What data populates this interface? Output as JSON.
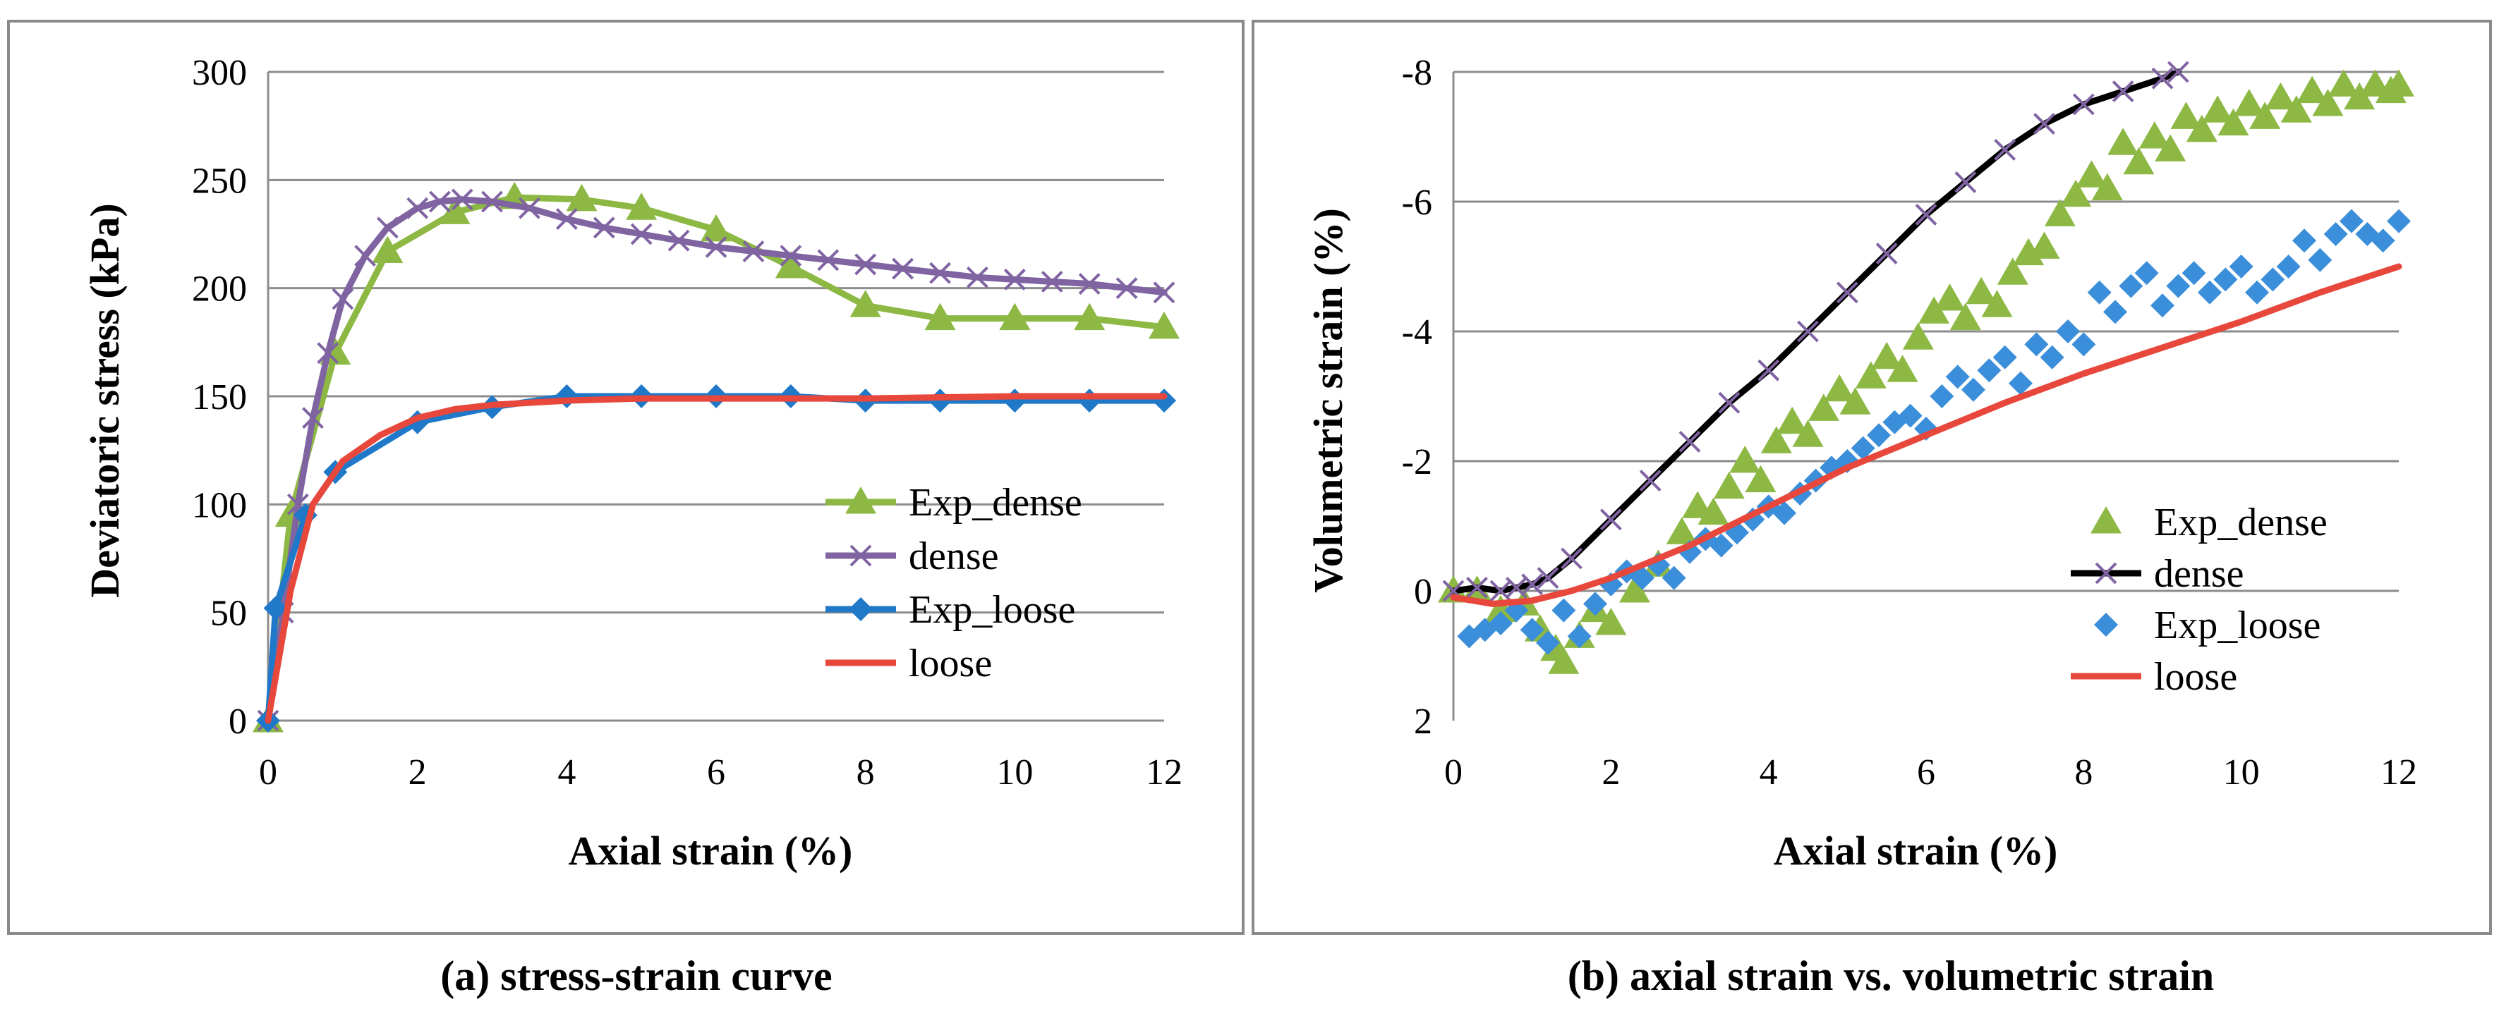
{
  "chart_data": [
    {
      "type": "line",
      "caption": "(a) stress-strain curve",
      "xlabel": "Axial strain (%)",
      "ylabel": "Deviatoric stress (kPa)",
      "xlim": [
        0,
        12
      ],
      "ylim": [
        0,
        300
      ],
      "xticks": [
        0,
        2,
        4,
        6,
        8,
        10,
        12
      ],
      "yticks": [
        0,
        50,
        100,
        150,
        200,
        250,
        300
      ],
      "xtick_labels": [
        "0",
        "2",
        "4",
        "6",
        "8",
        "10",
        "12"
      ],
      "ytick_labels": [
        "0",
        "50",
        "100",
        "150",
        "200",
        "250",
        "300"
      ],
      "grid": "horizontal",
      "legend_position": "right",
      "series": [
        {
          "name": "Exp_dense",
          "color": "#8DB844",
          "marker": "triangle",
          "line": true,
          "x": [
            0,
            0.3,
            0.9,
            1.6,
            2.5,
            3.3,
            4.2,
            5.0,
            6.0,
            7.0,
            8.0,
            9.0,
            10.0,
            11.0,
            12.0
          ],
          "y": [
            0,
            95,
            170,
            217,
            235,
            242,
            241,
            237,
            227,
            210,
            192,
            186,
            186,
            186,
            182
          ]
        },
        {
          "name": "dense",
          "color": "#8064A2",
          "marker": "cross",
          "line": true,
          "x": [
            0,
            0.2,
            0.4,
            0.6,
            0.8,
            1.0,
            1.3,
            1.6,
            2.0,
            2.3,
            2.6,
            3.0,
            3.5,
            4.0,
            4.5,
            5.0,
            5.5,
            6.0,
            6.5,
            7.0,
            7.5,
            8.0,
            8.5,
            9.0,
            9.5,
            10.0,
            10.5,
            11.0,
            11.5,
            12.0
          ],
          "y": [
            0,
            50,
            100,
            140,
            170,
            195,
            215,
            228,
            237,
            240,
            241,
            240,
            237,
            232,
            228,
            225,
            222,
            219,
            217,
            215,
            213,
            211,
            209,
            207,
            205,
            204,
            203,
            202,
            200,
            198
          ]
        },
        {
          "name": "Exp_loose",
          "color": "#1F78C8",
          "marker": "diamond",
          "line": true,
          "x": [
            0,
            0.1,
            0.5,
            0.9,
            2.0,
            3.0,
            4.0,
            5.0,
            6.0,
            7.0,
            8.0,
            9.0,
            10.0,
            11.0,
            12.0
          ],
          "y": [
            0,
            52,
            95,
            115,
            138,
            145,
            150,
            150,
            150,
            150,
            148,
            148,
            148,
            148,
            148
          ]
        },
        {
          "name": "loose",
          "color": "#E8473C",
          "marker": "none",
          "line": true,
          "x": [
            0,
            0.3,
            0.6,
            1.0,
            1.5,
            2.0,
            2.5,
            3.0,
            4.0,
            5.0,
            6.0,
            8.0,
            10.0,
            12.0
          ],
          "y": [
            0,
            60,
            100,
            120,
            132,
            140,
            144,
            146,
            148,
            149,
            149,
            149,
            150,
            150
          ]
        }
      ]
    },
    {
      "type": "scatter",
      "caption": "(b) axial strain vs. volumetric strain",
      "xlabel": "Axial strain (%)",
      "ylabel": "Volumetric strain (%)",
      "xlim": [
        0,
        12
      ],
      "ylim": [
        2,
        -8
      ],
      "xticks": [
        0,
        2,
        4,
        6,
        8,
        10,
        12
      ],
      "yticks": [
        2,
        0,
        -2,
        -4,
        -6,
        -8
      ],
      "xtick_labels": [
        "0",
        "2",
        "4",
        "6",
        "8",
        "10",
        "12"
      ],
      "ytick_labels": [
        "2",
        "0",
        "-2",
        "-4",
        "-6",
        "-8"
      ],
      "grid": "horizontal",
      "legend_position": "bottom-right",
      "series": [
        {
          "name": "Exp_dense",
          "color": "#8DB844",
          "marker": "triangle",
          "line": false,
          "x": [
            0,
            0.3,
            0.6,
            0.9,
            1.1,
            1.3,
            1.4,
            1.6,
            1.8,
            2.0,
            2.3,
            2.6,
            2.9,
            3.1,
            3.3,
            3.5,
            3.7,
            3.9,
            4.1,
            4.3,
            4.5,
            4.7,
            4.9,
            5.1,
            5.3,
            5.5,
            5.7,
            5.9,
            6.1,
            6.3,
            6.5,
            6.7,
            6.9,
            7.1,
            7.3,
            7.5,
            7.7,
            7.9,
            8.1,
            8.3,
            8.5,
            8.7,
            8.9,
            9.1,
            9.3,
            9.5,
            9.7,
            9.9,
            10.1,
            10.3,
            10.5,
            10.7,
            10.9,
            11.1,
            11.3,
            11.5,
            11.7,
            11.9,
            12.0
          ],
          "y": [
            0,
            0,
            0.3,
            0.2,
            0.6,
            0.9,
            1.1,
            0.7,
            0.3,
            0.5,
            0,
            -0.4,
            -0.9,
            -1.3,
            -1.2,
            -1.6,
            -2.0,
            -1.7,
            -2.3,
            -2.6,
            -2.4,
            -2.8,
            -3.1,
            -2.9,
            -3.3,
            -3.6,
            -3.4,
            -3.9,
            -4.3,
            -4.5,
            -4.2,
            -4.6,
            -4.4,
            -4.9,
            -5.2,
            -5.3,
            -5.8,
            -6.1,
            -6.4,
            -6.2,
            -6.9,
            -6.6,
            -7.0,
            -6.8,
            -7.3,
            -7.1,
            -7.4,
            -7.2,
            -7.5,
            -7.3,
            -7.6,
            -7.4,
            -7.7,
            -7.5,
            -7.8,
            -7.6,
            -7.8,
            -7.7,
            -7.8
          ]
        },
        {
          "name": "dense",
          "color": "#000000",
          "marker": "cross",
          "line": true,
          "marker_color": "#8064A2",
          "x": [
            0,
            0.3,
            0.6,
            0.8,
            1.0,
            1.2,
            1.5,
            2.0,
            2.5,
            3.0,
            3.5,
            4.0,
            4.5,
            5.0,
            5.5,
            6.0,
            6.5,
            7.0,
            7.5,
            8.0,
            8.5,
            9.0,
            9.2
          ],
          "y": [
            0,
            -0.05,
            0,
            -0.05,
            -0.1,
            -0.2,
            -0.5,
            -1.1,
            -1.7,
            -2.3,
            -2.9,
            -3.4,
            -4.0,
            -4.6,
            -5.2,
            -5.8,
            -6.3,
            -6.8,
            -7.2,
            -7.5,
            -7.7,
            -7.9,
            -8.0
          ]
        },
        {
          "name": "Exp_loose",
          "color": "#3B8ED9",
          "marker": "diamond",
          "line": false,
          "x": [
            0.2,
            0.4,
            0.6,
            0.8,
            1.0,
            1.2,
            1.4,
            1.6,
            1.8,
            2.0,
            2.2,
            2.4,
            2.6,
            2.8,
            3.0,
            3.2,
            3.4,
            3.6,
            3.8,
            4.0,
            4.2,
            4.4,
            4.6,
            4.8,
            5.0,
            5.2,
            5.4,
            5.6,
            5.8,
            6.0,
            6.2,
            6.4,
            6.6,
            6.8,
            7.0,
            7.2,
            7.4,
            7.6,
            7.8,
            8.0,
            8.2,
            8.4,
            8.6,
            8.8,
            9.0,
            9.2,
            9.4,
            9.6,
            9.8,
            10.0,
            10.2,
            10.4,
            10.6,
            10.8,
            11.0,
            11.2,
            11.4,
            11.6,
            11.8,
            12.0
          ],
          "y": [
            0.7,
            0.6,
            0.5,
            0.3,
            0.6,
            0.8,
            0.3,
            0.7,
            0.2,
            -0.1,
            -0.3,
            -0.2,
            -0.4,
            -0.2,
            -0.6,
            -0.8,
            -0.7,
            -0.9,
            -1.1,
            -1.3,
            -1.2,
            -1.5,
            -1.7,
            -1.9,
            -2.0,
            -2.2,
            -2.4,
            -2.6,
            -2.7,
            -2.5,
            -3.0,
            -3.3,
            -3.1,
            -3.4,
            -3.6,
            -3.2,
            -3.8,
            -3.6,
            -4.0,
            -3.8,
            -4.6,
            -4.3,
            -4.7,
            -4.9,
            -4.4,
            -4.7,
            -4.9,
            -4.6,
            -4.8,
            -5.0,
            -4.6,
            -4.8,
            -5.0,
            -5.4,
            -5.1,
            -5.5,
            -5.7,
            -5.5,
            -5.4,
            -5.7
          ]
        },
        {
          "name": "loose",
          "color": "#E8473C",
          "marker": "none",
          "line": true,
          "x": [
            0,
            0.5,
            1.0,
            1.5,
            2.0,
            3.0,
            4.0,
            5.0,
            6.0,
            7.0,
            8.0,
            9.0,
            10.0,
            11.0,
            12.0
          ],
          "y": [
            0.1,
            0.2,
            0.15,
            0,
            -0.2,
            -0.7,
            -1.3,
            -1.9,
            -2.4,
            -2.9,
            -3.35,
            -3.75,
            -4.15,
            -4.6,
            -5.0
          ]
        }
      ]
    }
  ]
}
